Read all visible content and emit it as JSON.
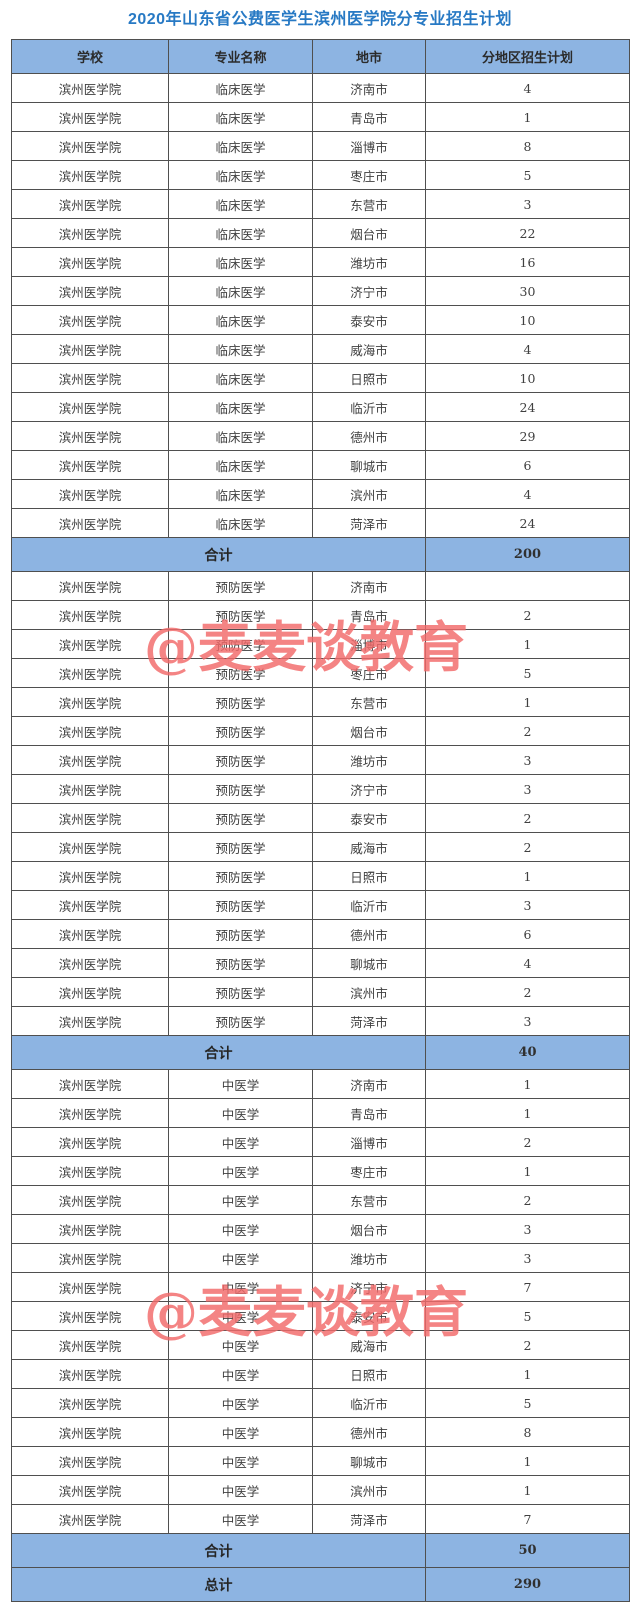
{
  "page_title": "2020年山东省公费医学生滨州医学院分专业招生计划",
  "watermark_text": "@麦麦谈教育",
  "colors": {
    "title_blue": "#2779c4",
    "header_bg": "#8db4e2",
    "watermark_red": "#f26a6a",
    "border_gray": "#4f4f4f"
  },
  "table": {
    "headers": [
      "学校",
      "专业名称",
      "地市",
      "分地区招生计划"
    ],
    "sections": [
      {
        "major": "临床医学",
        "rows": [
          {
            "school": "滨州医学院",
            "major": "临床医学",
            "city": "济南市",
            "plan": "4"
          },
          {
            "school": "滨州医学院",
            "major": "临床医学",
            "city": "青岛市",
            "plan": "1"
          },
          {
            "school": "滨州医学院",
            "major": "临床医学",
            "city": "淄博市",
            "plan": "8"
          },
          {
            "school": "滨州医学院",
            "major": "临床医学",
            "city": "枣庄市",
            "plan": "5"
          },
          {
            "school": "滨州医学院",
            "major": "临床医学",
            "city": "东营市",
            "plan": "3"
          },
          {
            "school": "滨州医学院",
            "major": "临床医学",
            "city": "烟台市",
            "plan": "22"
          },
          {
            "school": "滨州医学院",
            "major": "临床医学",
            "city": "潍坊市",
            "plan": "16"
          },
          {
            "school": "滨州医学院",
            "major": "临床医学",
            "city": "济宁市",
            "plan": "30"
          },
          {
            "school": "滨州医学院",
            "major": "临床医学",
            "city": "泰安市",
            "plan": "10"
          },
          {
            "school": "滨州医学院",
            "major": "临床医学",
            "city": "威海市",
            "plan": "4"
          },
          {
            "school": "滨州医学院",
            "major": "临床医学",
            "city": "日照市",
            "plan": "10"
          },
          {
            "school": "滨州医学院",
            "major": "临床医学",
            "city": "临沂市",
            "plan": "24"
          },
          {
            "school": "滨州医学院",
            "major": "临床医学",
            "city": "德州市",
            "plan": "29"
          },
          {
            "school": "滨州医学院",
            "major": "临床医学",
            "city": "聊城市",
            "plan": "6"
          },
          {
            "school": "滨州医学院",
            "major": "临床医学",
            "city": "滨州市",
            "plan": "4"
          },
          {
            "school": "滨州医学院",
            "major": "临床医学",
            "city": "菏泽市",
            "plan": "24"
          }
        ],
        "subtotal": {
          "label": "合计",
          "value": "200"
        }
      },
      {
        "major": "预防医学",
        "rows": [
          {
            "school": "滨州医学院",
            "major": "预防医学",
            "city": "济南市",
            "plan": ""
          },
          {
            "school": "滨州医学院",
            "major": "预防医学",
            "city": "青岛市",
            "plan": "2"
          },
          {
            "school": "滨州医学院",
            "major": "预防医学",
            "city": "淄博市",
            "plan": "1"
          },
          {
            "school": "滨州医学院",
            "major": "预防医学",
            "city": "枣庄市",
            "plan": "5"
          },
          {
            "school": "滨州医学院",
            "major": "预防医学",
            "city": "东营市",
            "plan": "1"
          },
          {
            "school": "滨州医学院",
            "major": "预防医学",
            "city": "烟台市",
            "plan": "2"
          },
          {
            "school": "滨州医学院",
            "major": "预防医学",
            "city": "潍坊市",
            "plan": "3"
          },
          {
            "school": "滨州医学院",
            "major": "预防医学",
            "city": "济宁市",
            "plan": "3"
          },
          {
            "school": "滨州医学院",
            "major": "预防医学",
            "city": "泰安市",
            "plan": "2"
          },
          {
            "school": "滨州医学院",
            "major": "预防医学",
            "city": "威海市",
            "plan": "2"
          },
          {
            "school": "滨州医学院",
            "major": "预防医学",
            "city": "日照市",
            "plan": "1"
          },
          {
            "school": "滨州医学院",
            "major": "预防医学",
            "city": "临沂市",
            "plan": "3"
          },
          {
            "school": "滨州医学院",
            "major": "预防医学",
            "city": "德州市",
            "plan": "6"
          },
          {
            "school": "滨州医学院",
            "major": "预防医学",
            "city": "聊城市",
            "plan": "4"
          },
          {
            "school": "滨州医学院",
            "major": "预防医学",
            "city": "滨州市",
            "plan": "2"
          },
          {
            "school": "滨州医学院",
            "major": "预防医学",
            "city": "菏泽市",
            "plan": "3"
          }
        ],
        "subtotal": {
          "label": "合计",
          "value": "40"
        }
      },
      {
        "major": "中医学",
        "rows": [
          {
            "school": "滨州医学院",
            "major": "中医学",
            "city": "济南市",
            "plan": "1"
          },
          {
            "school": "滨州医学院",
            "major": "中医学",
            "city": "青岛市",
            "plan": "1"
          },
          {
            "school": "滨州医学院",
            "major": "中医学",
            "city": "淄博市",
            "plan": "2"
          },
          {
            "school": "滨州医学院",
            "major": "中医学",
            "city": "枣庄市",
            "plan": "1"
          },
          {
            "school": "滨州医学院",
            "major": "中医学",
            "city": "东营市",
            "plan": "2"
          },
          {
            "school": "滨州医学院",
            "major": "中医学",
            "city": "烟台市",
            "plan": "3"
          },
          {
            "school": "滨州医学院",
            "major": "中医学",
            "city": "潍坊市",
            "plan": "3"
          },
          {
            "school": "滨州医学院",
            "major": "中医学",
            "city": "济宁市",
            "plan": "7"
          },
          {
            "school": "滨州医学院",
            "major": "中医学",
            "city": "泰安市",
            "plan": "5"
          },
          {
            "school": "滨州医学院",
            "major": "中医学",
            "city": "威海市",
            "plan": "2"
          },
          {
            "school": "滨州医学院",
            "major": "中医学",
            "city": "日照市",
            "plan": "1"
          },
          {
            "school": "滨州医学院",
            "major": "中医学",
            "city": "临沂市",
            "plan": "5"
          },
          {
            "school": "滨州医学院",
            "major": "中医学",
            "city": "德州市",
            "plan": "8"
          },
          {
            "school": "滨州医学院",
            "major": "中医学",
            "city": "聊城市",
            "plan": "1"
          },
          {
            "school": "滨州医学院",
            "major": "中医学",
            "city": "滨州市",
            "plan": "1"
          },
          {
            "school": "滨州医学院",
            "major": "中医学",
            "city": "菏泽市",
            "plan": "7"
          }
        ],
        "subtotal": {
          "label": "合计",
          "value": "50"
        }
      }
    ],
    "grand_total": {
      "label": "总计",
      "value": "290"
    }
  }
}
